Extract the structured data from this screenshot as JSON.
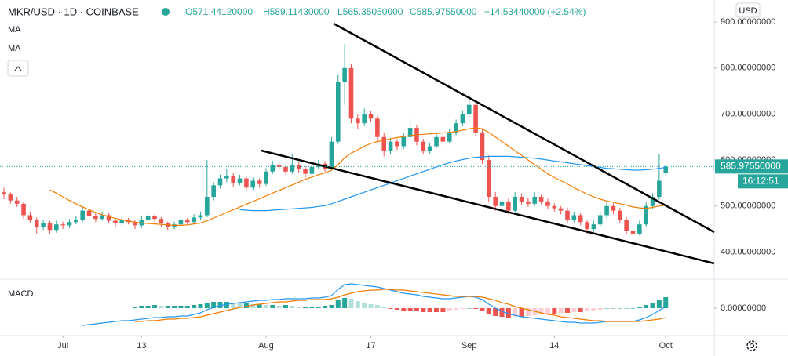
{
  "legend": {
    "symbol": "MKR/USD · 1D · COINBASE",
    "open": "O571.44120000",
    "high": "H589.11430000",
    "low": "L565.35050000",
    "close": "C585.97550000",
    "change": "+14.53440000 (+2.54%)",
    "currency": "USD",
    "last_price": "585.97550000",
    "countdown": "16:12:51"
  },
  "chart_data": {
    "type": "candlestick",
    "up_color": "#26a69a",
    "down_color": "#ef5350",
    "xlim": [
      -0.6,
      108.4
    ],
    "xticks": [
      {
        "value": 9,
        "label": "Jul"
      },
      {
        "value": 21,
        "label": "13"
      },
      {
        "value": 40,
        "label": "Aug"
      },
      {
        "value": 56,
        "label": "17"
      },
      {
        "value": 71,
        "label": "Sep"
      },
      {
        "value": 84,
        "label": "14"
      },
      {
        "value": 101,
        "label": "Oct"
      }
    ],
    "ylim": [
      341,
      948
    ],
    "yticks": [
      {
        "value": 900,
        "label": "900.00000000"
      },
      {
        "value": 800,
        "label": "800.00000000"
      },
      {
        "value": 700,
        "label": "700.00000000"
      },
      {
        "value": 600,
        "label": "600.00000000"
      },
      {
        "value": 500,
        "label": "500.00000000"
      },
      {
        "value": 400,
        "label": "400.00000000"
      }
    ],
    "ohlc": [
      [
        530,
        540,
        515,
        525
      ],
      [
        525,
        530,
        505,
        512
      ],
      [
        512,
        520,
        498,
        505
      ],
      [
        505,
        510,
        472,
        480
      ],
      [
        480,
        488,
        462,
        470
      ],
      [
        470,
        475,
        440,
        455
      ],
      [
        455,
        470,
        448,
        462
      ],
      [
        462,
        468,
        440,
        448
      ],
      [
        448,
        468,
        442,
        460
      ],
      [
        460,
        466,
        450,
        458
      ],
      [
        458,
        472,
        452,
        465
      ],
      [
        465,
        478,
        460,
        470
      ],
      [
        470,
        500,
        465,
        490
      ],
      [
        490,
        495,
        470,
        478
      ],
      [
        478,
        484,
        465,
        472
      ],
      [
        472,
        488,
        468,
        480
      ],
      [
        480,
        485,
        462,
        468
      ],
      [
        468,
        472,
        455,
        462
      ],
      [
        462,
        478,
        458,
        470
      ],
      [
        470,
        474,
        460,
        465
      ],
      [
        465,
        470,
        450,
        458
      ],
      [
        458,
        478,
        452,
        470
      ],
      [
        470,
        485,
        466,
        478
      ],
      [
        478,
        482,
        466,
        472
      ],
      [
        472,
        476,
        455,
        462
      ],
      [
        462,
        466,
        448,
        455
      ],
      [
        455,
        466,
        450,
        460
      ],
      [
        460,
        476,
        456,
        470
      ],
      [
        470,
        474,
        458,
        465
      ],
      [
        465,
        482,
        460,
        475
      ],
      [
        475,
        488,
        470,
        480
      ],
      [
        480,
        600,
        476,
        520
      ],
      [
        520,
        552,
        512,
        545
      ],
      [
        545,
        568,
        538,
        560
      ],
      [
        560,
        580,
        552,
        565
      ],
      [
        565,
        572,
        542,
        550
      ],
      [
        550,
        568,
        545,
        560
      ],
      [
        560,
        565,
        532,
        540
      ],
      [
        540,
        562,
        535,
        555
      ],
      [
        555,
        560,
        540,
        548
      ],
      [
        548,
        582,
        544,
        575
      ],
      [
        575,
        598,
        570,
        590
      ],
      [
        590,
        596,
        578,
        585
      ],
      [
        585,
        590,
        568,
        575
      ],
      [
        575,
        612,
        570,
        590
      ],
      [
        590,
        595,
        572,
        580
      ],
      [
        580,
        586,
        562,
        570
      ],
      [
        570,
        592,
        565,
        585
      ],
      [
        585,
        600,
        580,
        592
      ],
      [
        592,
        598,
        574,
        580
      ],
      [
        580,
        650,
        576,
        640
      ],
      [
        640,
        785,
        635,
        770
      ],
      [
        770,
        852,
        720,
        800
      ],
      [
        800,
        810,
        680,
        690
      ],
      [
        690,
        700,
        668,
        680
      ],
      [
        680,
        712,
        674,
        700
      ],
      [
        700,
        706,
        682,
        690
      ],
      [
        690,
        696,
        640,
        650
      ],
      [
        650,
        660,
        608,
        620
      ],
      [
        620,
        648,
        612,
        640
      ],
      [
        640,
        646,
        622,
        630
      ],
      [
        630,
        658,
        624,
        650
      ],
      [
        650,
        690,
        642,
        670
      ],
      [
        670,
        676,
        632,
        640
      ],
      [
        640,
        646,
        612,
        620
      ],
      [
        620,
        638,
        614,
        630
      ],
      [
        630,
        658,
        626,
        650
      ],
      [
        650,
        656,
        632,
        640
      ],
      [
        640,
        668,
        636,
        660
      ],
      [
        660,
        688,
        654,
        680
      ],
      [
        680,
        708,
        674,
        700
      ],
      [
        700,
        742,
        692,
        720
      ],
      [
        720,
        728,
        652,
        660
      ],
      [
        660,
        668,
        592,
        600
      ],
      [
        600,
        610,
        510,
        520
      ],
      [
        520,
        530,
        490,
        500
      ],
      [
        500,
        520,
        494,
        510
      ],
      [
        510,
        516,
        482,
        490
      ],
      [
        490,
        530,
        486,
        520
      ],
      [
        520,
        528,
        502,
        510
      ],
      [
        510,
        518,
        498,
        505
      ],
      [
        505,
        530,
        500,
        520
      ],
      [
        520,
        526,
        504,
        510
      ],
      [
        510,
        516,
        494,
        500
      ],
      [
        500,
        506,
        488,
        495
      ],
      [
        495,
        500,
        482,
        490
      ],
      [
        490,
        496,
        462,
        470
      ],
      [
        470,
        488,
        464,
        480
      ],
      [
        480,
        486,
        458,
        465
      ],
      [
        465,
        470,
        440,
        450
      ],
      [
        450,
        468,
        444,
        460
      ],
      [
        460,
        488,
        456,
        480
      ],
      [
        480,
        510,
        474,
        500
      ],
      [
        500,
        506,
        482,
        490
      ],
      [
        490,
        496,
        462,
        470
      ],
      [
        470,
        476,
        438,
        445
      ],
      [
        445,
        452,
        430,
        440
      ],
      [
        440,
        468,
        436,
        460
      ],
      [
        460,
        508,
        456,
        500
      ],
      [
        500,
        528,
        494,
        520
      ],
      [
        520,
        612,
        514,
        555
      ],
      [
        571.4412,
        589.1143,
        565.3505,
        585.9755
      ]
    ],
    "series": [
      {
        "name": "MA",
        "color": "#2196f3",
        "values": [
          null,
          null,
          null,
          null,
          null,
          null,
          null,
          null,
          null,
          null,
          null,
          null,
          null,
          null,
          null,
          null,
          null,
          null,
          null,
          null,
          null,
          null,
          null,
          null,
          null,
          null,
          null,
          null,
          null,
          null,
          null,
          null,
          null,
          null,
          null,
          null,
          492,
          491,
          490,
          490,
          490,
          491,
          492,
          493,
          494,
          495,
          496,
          497,
          499,
          501,
          505,
          510,
          515,
          520,
          525,
          530,
          535,
          540,
          545,
          550,
          555,
          560,
          565,
          570,
          575,
          580,
          585,
          590,
          594,
          598,
          601,
          604,
          606,
          607,
          608,
          608,
          608,
          608,
          607,
          606,
          605,
          604,
          602,
          600,
          598,
          596,
          594,
          592,
          590,
          588,
          586,
          584,
          582,
          581,
          580,
          579,
          578,
          578,
          579,
          580,
          582,
          584
        ]
      },
      {
        "name": "MA",
        "color": "#f57c00",
        "values": [
          null,
          null,
          null,
          null,
          null,
          null,
          null,
          535,
          528,
          520,
          512,
          505,
          498,
          492,
          486,
          481,
          477,
          473,
          470,
          467,
          465,
          463,
          462,
          461,
          460,
          459,
          458,
          458,
          459,
          461,
          463,
          468,
          474,
          480,
          486,
          492,
          498,
          504,
          510,
          516,
          522,
          528,
          534,
          540,
          546,
          552,
          558,
          563,
          568,
          572,
          578,
          590,
          605,
          615,
          622,
          630,
          636,
          640,
          643,
          646,
          649,
          651,
          653,
          655,
          656,
          657,
          658,
          659,
          660,
          662,
          665,
          668,
          670,
          668,
          660,
          650,
          640,
          630,
          620,
          610,
          600,
          590,
          580,
          570,
          562,
          555,
          548,
          540,
          533,
          526,
          520,
          515,
          511,
          508,
          505,
          502,
          498,
          496,
          495,
          497,
          500,
          502
        ]
      }
    ],
    "macd": {
      "title": "MACD",
      "ylim": [
        -35,
        35
      ],
      "yticks": [
        {
          "value": 0,
          "label": "0.00000000"
        }
      ],
      "lines": [
        {
          "color": "#2196f3",
          "values": [
            null,
            null,
            null,
            null,
            null,
            null,
            null,
            null,
            null,
            null,
            null,
            null,
            -22,
            -21,
            -20,
            -19,
            -18,
            -17,
            -16,
            -16,
            -15,
            -14,
            -13,
            -12,
            -12,
            -11,
            -11,
            -10,
            -10,
            -8,
            -6,
            -2,
            1,
            3,
            5,
            6,
            7,
            8,
            9,
            10,
            10,
            11,
            11,
            12,
            12,
            12,
            12,
            13,
            13,
            14,
            16,
            24,
            30,
            31,
            30,
            29,
            28,
            27,
            25,
            23,
            21,
            19,
            18,
            17,
            15,
            14,
            13,
            12,
            12,
            13,
            14,
            15,
            14,
            11,
            5,
            0,
            -4,
            -7,
            -9,
            -11,
            -12,
            -13,
            -14,
            -15,
            -16,
            -17,
            -18,
            -18,
            -19,
            -19,
            -19,
            -18,
            -17,
            -17,
            -17,
            -17,
            -17,
            -15,
            -12,
            -8,
            -3,
            2
          ]
        },
        {
          "color": "#f57c00",
          "values": [
            null,
            null,
            null,
            null,
            null,
            null,
            null,
            null,
            null,
            null,
            null,
            null,
            null,
            null,
            null,
            null,
            null,
            null,
            null,
            null,
            -17,
            -17,
            -16,
            -16,
            -15,
            -14,
            -14,
            -13,
            -13,
            -12,
            -11,
            -9,
            -7,
            -5,
            -3,
            -1,
            1,
            2,
            4,
            5,
            6,
            7,
            8,
            8,
            9,
            10,
            10,
            11,
            11,
            11,
            12,
            14,
            17,
            19,
            21,
            22,
            23,
            23,
            24,
            24,
            23,
            23,
            22,
            21,
            20,
            19,
            18,
            17,
            16,
            15,
            15,
            15,
            15,
            14,
            12,
            10,
            7,
            5,
            2,
            0,
            -2,
            -4,
            -6,
            -8,
            -9,
            -11,
            -12,
            -13,
            -14,
            -15,
            -16,
            -16,
            -17,
            -17,
            -17,
            -17,
            -17,
            -17,
            -16,
            -15,
            -14,
            -12
          ]
        }
      ],
      "histogram": [
        null,
        null,
        null,
        null,
        null,
        null,
        null,
        null,
        null,
        null,
        null,
        null,
        null,
        null,
        null,
        null,
        null,
        null,
        null,
        null,
        2,
        3,
        3,
        4,
        3,
        3,
        3,
        3,
        3,
        4,
        5,
        7,
        8,
        8,
        8,
        7,
        6,
        6,
        5,
        5,
        4,
        4,
        3,
        4,
        3,
        2,
        2,
        2,
        2,
        3,
        4,
        10,
        13,
        12,
        9,
        7,
        5,
        4,
        1,
        -1,
        -2,
        -4,
        -4,
        -4,
        -5,
        -5,
        -5,
        -5,
        -4,
        -2,
        -1,
        0,
        -1,
        -3,
        -7,
        -10,
        -11,
        -12,
        -11,
        -11,
        -10,
        -9,
        -8,
        -7,
        -7,
        -6,
        -6,
        -5,
        -5,
        -4,
        -3,
        -2,
        0,
        0,
        0,
        0,
        0,
        2,
        4,
        7,
        11,
        14
      ]
    }
  }
}
